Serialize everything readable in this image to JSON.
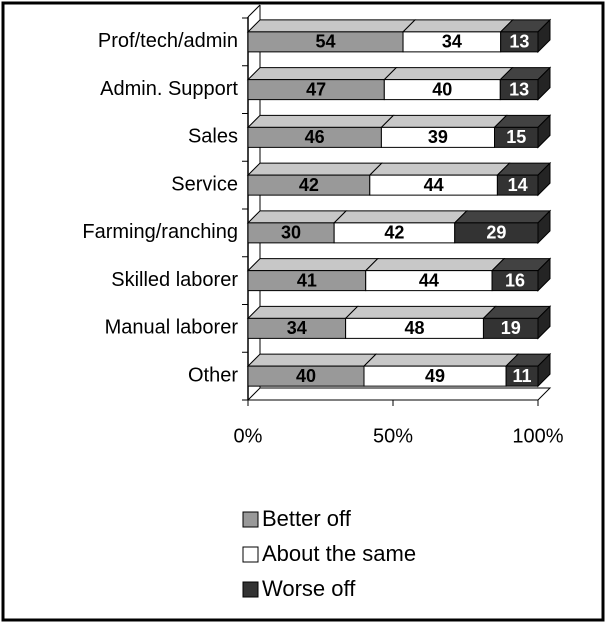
{
  "chart_data": {
    "type": "bar",
    "categories": [
      "Prof/tech/admin",
      "Admin. Support",
      "Sales",
      "Service",
      "Farming/ranching",
      "Skilled laborer",
      "Manual laborer",
      "Other"
    ],
    "series": [
      {
        "name": "Better off",
        "color": "#999999",
        "values": [
          54,
          47,
          46,
          42,
          30,
          41,
          34,
          40
        ]
      },
      {
        "name": "About the same",
        "color": "#ffffff",
        "values": [
          34,
          40,
          39,
          44,
          42,
          44,
          48,
          49
        ]
      },
      {
        "name": "Worse off",
        "color": "#333333",
        "values": [
          13,
          13,
          15,
          14,
          29,
          16,
          19,
          11
        ]
      }
    ],
    "stacking": "percent",
    "xlim": [
      0,
      100
    ],
    "xticks": [
      {
        "value": 0,
        "label": "0%"
      },
      {
        "value": 50,
        "label": "50%"
      },
      {
        "value": 100,
        "label": "100%"
      }
    ],
    "legend": "bottom"
  }
}
